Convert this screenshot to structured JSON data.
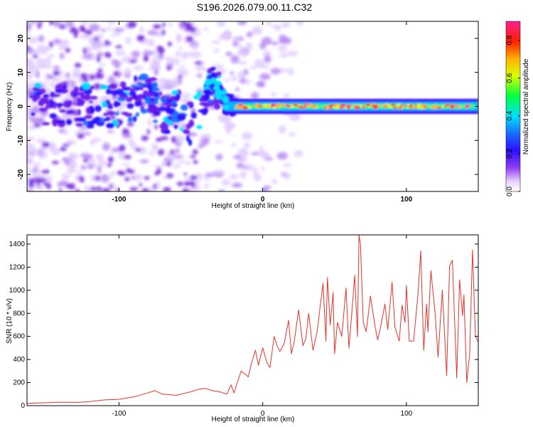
{
  "title": "S196.2026.079.00.11.C32",
  "chart_data": [
    {
      "type": "heatmap",
      "xlabel": "Height of straight line (km)",
      "ylabel": "Frequency (Hz)",
      "xlim": [
        -164,
        150
      ],
      "ylim": [
        -25,
        25
      ],
      "x_ticks": [
        -100,
        0,
        100
      ],
      "y_ticks": [
        -20,
        -10,
        0,
        10,
        20
      ],
      "colorbar": {
        "label": "Normalized spectral amplitude",
        "range": [
          0,
          0.9
        ],
        "ticks": [
          "0.0",
          "0.2",
          "0.4",
          "0.6",
          "0.8"
        ],
        "colormap": "white-violet-blue-cyan-green-yellow-orange-red-magenta"
      },
      "ridge": [
        {
          "x": -160,
          "y": 0
        },
        {
          "x": -120,
          "y": 0
        },
        {
          "x": -100,
          "y": 0
        },
        {
          "x": -90,
          "y": 2
        },
        {
          "x": -80,
          "y": 5
        },
        {
          "x": -70,
          "y": -3
        },
        {
          "x": -60,
          "y": 0
        },
        {
          "x": -50,
          "y": -5
        },
        {
          "x": -40,
          "y": 3
        },
        {
          "x": -35,
          "y": 8
        },
        {
          "x": -30,
          "y": 4
        },
        {
          "x": -25,
          "y": 1
        },
        {
          "x": -20,
          "y": 0
        },
        {
          "x": 0,
          "y": 0
        },
        {
          "x": 50,
          "y": 0
        },
        {
          "x": 100,
          "y": 0
        },
        {
          "x": 150,
          "y": 0
        }
      ],
      "grid": false
    },
    {
      "type": "line",
      "xlabel": "Height of straight line (km)",
      "ylabel": "SNR (10 * v/v)",
      "xlim": [
        -164,
        150
      ],
      "ylim": [
        0,
        1480
      ],
      "x_ticks": [
        -100,
        0,
        100
      ],
      "y_ticks": [
        0,
        200,
        400,
        600,
        800,
        1000,
        1200,
        1400
      ],
      "color": "#e8322a",
      "grid": false,
      "series": [
        {
          "x": [
            -164,
            -150,
            -140,
            -130,
            -120,
            -110,
            -100,
            -90,
            -80,
            -75,
            -70,
            -60,
            -50,
            -45,
            -40,
            -35,
            -30,
            -25,
            -22,
            -20,
            -15,
            -10,
            -8,
            -5,
            -3,
            0,
            3,
            5,
            8,
            10,
            12,
            15,
            18,
            20,
            22,
            25,
            28,
            30,
            32,
            35,
            38,
            40,
            42,
            44,
            45,
            47,
            49,
            50,
            52,
            55,
            58,
            60,
            62,
            64,
            66,
            67,
            68,
            70,
            72,
            75,
            78,
            80,
            82,
            85,
            87,
            90,
            92,
            95,
            97,
            99,
            100,
            102,
            105,
            108,
            110,
            112,
            114,
            115,
            117,
            120,
            122,
            125,
            128,
            130,
            132,
            135,
            137,
            139,
            140,
            142,
            144,
            146,
            148,
            150
          ],
          "y": [
            20,
            25,
            30,
            28,
            35,
            50,
            55,
            75,
            110,
            130,
            100,
            90,
            120,
            140,
            150,
            130,
            120,
            100,
            180,
            110,
            300,
            250,
            360,
            480,
            350,
            500,
            370,
            330,
            600,
            520,
            470,
            540,
            740,
            450,
            560,
            830,
            520,
            580,
            800,
            480,
            650,
            860,
            1060,
            560,
            1110,
            700,
            980,
            450,
            720,
            600,
            1020,
            500,
            800,
            1130,
            600,
            1480,
            1400,
            720,
            640,
            950,
            700,
            570,
            680,
            880,
            660,
            1070,
            680,
            560,
            870,
            720,
            1040,
            560,
            560,
            960,
            1340,
            480,
            880,
            640,
            1170,
            800,
            420,
            1000,
            260,
            1210,
            1260,
            240,
            1090,
            780,
            960,
            200,
            450,
            1350,
            600,
            550
          ]
        }
      ]
    }
  ]
}
